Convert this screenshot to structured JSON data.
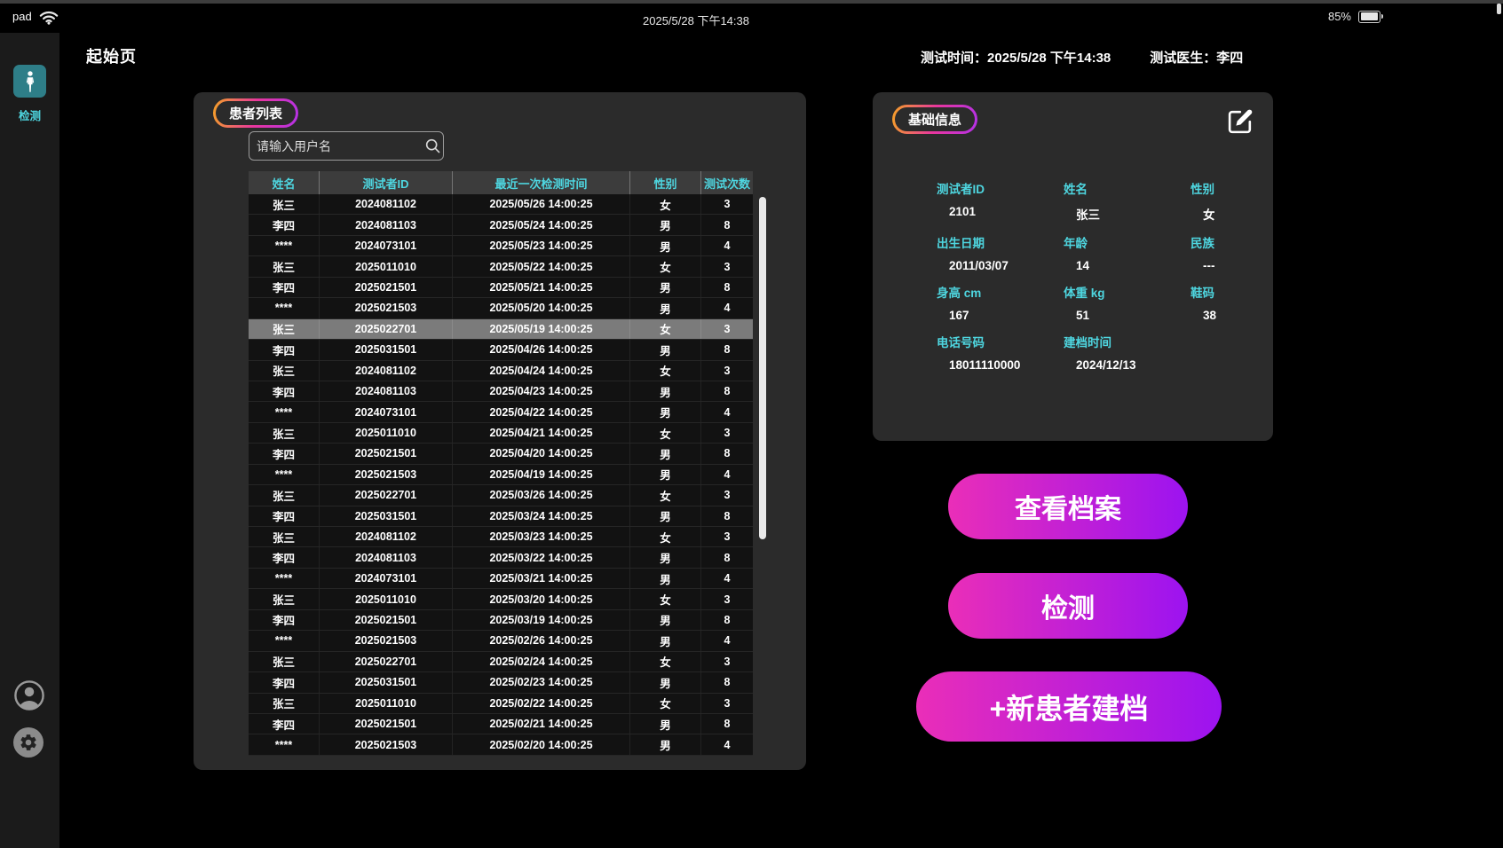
{
  "status_bar": {
    "carrier": "pad",
    "time": "2025/5/28 下午14:38",
    "battery_percent": "85%"
  },
  "sidebar": {
    "nav_detect_label": "检测"
  },
  "header": {
    "page_title": "起始页",
    "test_time_label": "测试时间：",
    "test_time_value": "2025/5/28 下午14:38",
    "doctor_label": "测试医生：",
    "doctor_value": "李四"
  },
  "patient_list": {
    "title": "患者列表",
    "search_placeholder": "请输入用户名",
    "columns": [
      "姓名",
      "测试者ID",
      "最近一次检测时间",
      "性别",
      "测试次数"
    ],
    "selected_index": 6,
    "rows": [
      [
        "张三",
        "2024081102",
        "2025/05/26 14:00:25",
        "女",
        "3"
      ],
      [
        "李四",
        "2024081103",
        "2025/05/24 14:00:25",
        "男",
        "8"
      ],
      [
        "****",
        "2024073101",
        "2025/05/23 14:00:25",
        "男",
        "4"
      ],
      [
        "张三",
        "2025011010",
        "2025/05/22 14:00:25",
        "女",
        "3"
      ],
      [
        "李四",
        "2025021501",
        "2025/05/21 14:00:25",
        "男",
        "8"
      ],
      [
        "****",
        "2025021503",
        "2025/05/20 14:00:25",
        "男",
        "4"
      ],
      [
        "张三",
        "2025022701",
        "2025/05/19 14:00:25",
        "女",
        "3"
      ],
      [
        "李四",
        "2025031501",
        "2025/04/26 14:00:25",
        "男",
        "8"
      ],
      [
        "张三",
        "2024081102",
        "2025/04/24 14:00:25",
        "女",
        "3"
      ],
      [
        "李四",
        "2024081103",
        "2025/04/23 14:00:25",
        "男",
        "8"
      ],
      [
        "****",
        "2024073101",
        "2025/04/22 14:00:25",
        "男",
        "4"
      ],
      [
        "张三",
        "2025011010",
        "2025/04/21 14:00:25",
        "女",
        "3"
      ],
      [
        "李四",
        "2025021501",
        "2025/04/20 14:00:25",
        "男",
        "8"
      ],
      [
        "****",
        "2025021503",
        "2025/04/19 14:00:25",
        "男",
        "4"
      ],
      [
        "张三",
        "2025022701",
        "2025/03/26 14:00:25",
        "女",
        "3"
      ],
      [
        "李四",
        "2025031501",
        "2025/03/24 14:00:25",
        "男",
        "8"
      ],
      [
        "张三",
        "2024081102",
        "2025/03/23 14:00:25",
        "女",
        "3"
      ],
      [
        "李四",
        "2024081103",
        "2025/03/22 14:00:25",
        "男",
        "8"
      ],
      [
        "****",
        "2024073101",
        "2025/03/21 14:00:25",
        "男",
        "4"
      ],
      [
        "张三",
        "2025011010",
        "2025/03/20 14:00:25",
        "女",
        "3"
      ],
      [
        "李四",
        "2025021501",
        "2025/03/19 14:00:25",
        "男",
        "8"
      ],
      [
        "****",
        "2025021503",
        "2025/02/26 14:00:25",
        "男",
        "4"
      ],
      [
        "张三",
        "2025022701",
        "2025/02/24 14:00:25",
        "女",
        "3"
      ],
      [
        "李四",
        "2025031501",
        "2025/02/23 14:00:25",
        "男",
        "8"
      ],
      [
        "张三",
        "2025011010",
        "2025/02/22 14:00:25",
        "女",
        "3"
      ],
      [
        "李四",
        "2025021501",
        "2025/02/21 14:00:25",
        "男",
        "8"
      ],
      [
        "****",
        "2025021503",
        "2025/02/20 14:00:25",
        "男",
        "4"
      ]
    ]
  },
  "basic_info": {
    "title": "基础信息",
    "fields": [
      {
        "label": "测试者ID",
        "value": "2101"
      },
      {
        "label": "姓名",
        "value": "张三"
      },
      {
        "label": "性别",
        "value": "女"
      },
      {
        "label": "出生日期",
        "value": "2011/03/07"
      },
      {
        "label": "年龄",
        "value": "14"
      },
      {
        "label": "民族",
        "value": "---"
      },
      {
        "label": "身高 cm",
        "value": "167"
      },
      {
        "label": "体重 kg",
        "value": "51"
      },
      {
        "label": "鞋码",
        "value": "38"
      },
      {
        "label": "电话号码",
        "value": "18011110000"
      },
      {
        "label": "建档时间",
        "value": "2024/12/13"
      }
    ]
  },
  "actions": {
    "view_archive": "查看档案",
    "detect": "检测",
    "new_patient": "+新患者建档"
  },
  "colors": {
    "accent_cyan": "#4ed6e0",
    "pill_gradient": [
      "#f5a226",
      "#e8369e",
      "#b431e8"
    ],
    "button_gradient": [
      "#ea2eb8",
      "#9c13f0"
    ],
    "nav_icon_teal": "#2e7e88",
    "selected_row": "#7b7b7b"
  }
}
